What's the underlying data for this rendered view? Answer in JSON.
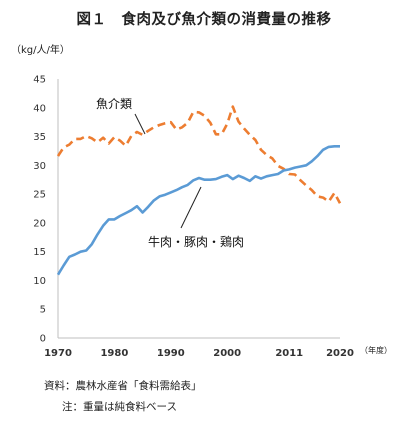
{
  "title": "図１　食肉及び魚介類の消費量の推移",
  "y_unit": "（kg/人/年）",
  "x_unit": "（年度）",
  "notes": {
    "source": "資料：農林水産省「食料需給表」",
    "note": "注：重量は純食料ベース"
  },
  "colors": {
    "fish": "#ED7D31",
    "meat": "#5B9BD5"
  },
  "chart_data": {
    "type": "line",
    "title": "図１　食肉及び魚介類の消費量の推移",
    "xlabel": "（年度）",
    "ylabel": "（kg/人/年）",
    "xlim": [
      1970,
      2020
    ],
    "ylim": [
      0,
      45
    ],
    "x_ticks": [
      1970,
      1980,
      1990,
      2000,
      2011,
      2020
    ],
    "y_ticks": [
      0,
      5,
      10,
      15,
      20,
      25,
      30,
      35,
      40,
      45
    ],
    "grid": false,
    "series": [
      {
        "name": "魚介類",
        "style": "dashed",
        "x": [
          1970,
          1971,
          1972,
          1973,
          1974,
          1975,
          1976,
          1977,
          1978,
          1979,
          1980,
          1981,
          1982,
          1983,
          1984,
          1985,
          1986,
          1987,
          1988,
          1989,
          1990,
          1991,
          1992,
          1993,
          1994,
          1995,
          1996,
          1997,
          1998,
          1999,
          2000,
          2001,
          2002,
          2003,
          2004,
          2005,
          2006,
          2007,
          2008,
          2009,
          2010,
          2011,
          2012,
          2013,
          2014,
          2015,
          2016,
          2017,
          2018,
          2019,
          2020
        ],
        "values": [
          31.6,
          33.1,
          33.6,
          34.6,
          34.6,
          35.1,
          34.7,
          34.0,
          34.8,
          33.8,
          34.9,
          34.3,
          33.4,
          35.1,
          35.8,
          35.3,
          36.0,
          36.6,
          37.0,
          37.3,
          37.5,
          36.2,
          36.6,
          37.4,
          39.3,
          39.2,
          38.6,
          37.4,
          35.4,
          35.4,
          37.2,
          40.2,
          37.6,
          36.4,
          35.3,
          34.4,
          32.7,
          31.8,
          31.2,
          29.9,
          29.4,
          28.5,
          28.4,
          27.4,
          26.5,
          25.7,
          24.6,
          24.4,
          23.7,
          25.2,
          23.4
        ]
      },
      {
        "name": "牛肉・豚肉・鶏肉",
        "style": "solid",
        "x": [
          1970,
          1971,
          1972,
          1973,
          1974,
          1975,
          1976,
          1977,
          1978,
          1979,
          1980,
          1981,
          1982,
          1983,
          1984,
          1985,
          1986,
          1987,
          1988,
          1989,
          1990,
          1991,
          1992,
          1993,
          1994,
          1995,
          1996,
          1997,
          1998,
          1999,
          2000,
          2001,
          2002,
          2003,
          2004,
          2005,
          2006,
          2007,
          2008,
          2009,
          2010,
          2011,
          2012,
          2013,
          2014,
          2015,
          2016,
          2017,
          2018,
          2019,
          2020
        ],
        "values": [
          11.0,
          12.6,
          14.1,
          14.5,
          15.0,
          15.2,
          16.3,
          18.0,
          19.5,
          20.6,
          20.6,
          21.2,
          21.7,
          22.2,
          22.9,
          21.8,
          22.8,
          23.9,
          24.6,
          24.9,
          25.3,
          25.7,
          26.2,
          26.6,
          27.4,
          27.8,
          27.5,
          27.5,
          27.6,
          28.0,
          28.3,
          27.6,
          28.2,
          27.8,
          27.3,
          28.1,
          27.7,
          28.1,
          28.3,
          28.5,
          29.1,
          29.3,
          29.6,
          29.8,
          30.0,
          30.7,
          31.6,
          32.7,
          33.2,
          33.3,
          33.3
        ]
      }
    ],
    "annotations": [
      {
        "text": "魚介類",
        "series": "魚介類"
      },
      {
        "text": "牛肉・豚肉・鶏肉",
        "series": "牛肉・豚肉・鶏肉"
      }
    ]
  }
}
